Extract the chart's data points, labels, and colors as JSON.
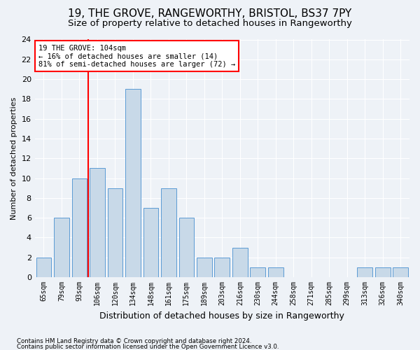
{
  "title1": "19, THE GROVE, RANGEWORTHY, BRISTOL, BS37 7PY",
  "title2": "Size of property relative to detached houses in Rangeworthy",
  "xlabel": "Distribution of detached houses by size in Rangeworthy",
  "ylabel": "Number of detached properties",
  "categories": [
    "65sqm",
    "79sqm",
    "93sqm",
    "106sqm",
    "120sqm",
    "134sqm",
    "148sqm",
    "161sqm",
    "175sqm",
    "189sqm",
    "203sqm",
    "216sqm",
    "230sqm",
    "244sqm",
    "258sqm",
    "271sqm",
    "285sqm",
    "299sqm",
    "313sqm",
    "326sqm",
    "340sqm"
  ],
  "values": [
    2,
    6,
    10,
    11,
    9,
    19,
    7,
    9,
    6,
    2,
    2,
    3,
    1,
    1,
    0,
    0,
    0,
    0,
    1,
    1,
    1
  ],
  "bar_color": "#c8d9e8",
  "bar_edge_color": "#5b9bd5",
  "reference_line_color": "red",
  "annotation_text": "19 THE GROVE: 104sqm\n← 16% of detached houses are smaller (14)\n81% of semi-detached houses are larger (72) →",
  "annotation_box_color": "white",
  "annotation_box_edge_color": "red",
  "ylim": [
    0,
    24
  ],
  "yticks": [
    0,
    2,
    4,
    6,
    8,
    10,
    12,
    14,
    16,
    18,
    20,
    22,
    24
  ],
  "footnote1": "Contains HM Land Registry data © Crown copyright and database right 2024.",
  "footnote2": "Contains public sector information licensed under the Open Government Licence v3.0.",
  "background_color": "#eef2f7",
  "grid_color": "#ffffff",
  "title1_fontsize": 11,
  "title2_fontsize": 9.5
}
